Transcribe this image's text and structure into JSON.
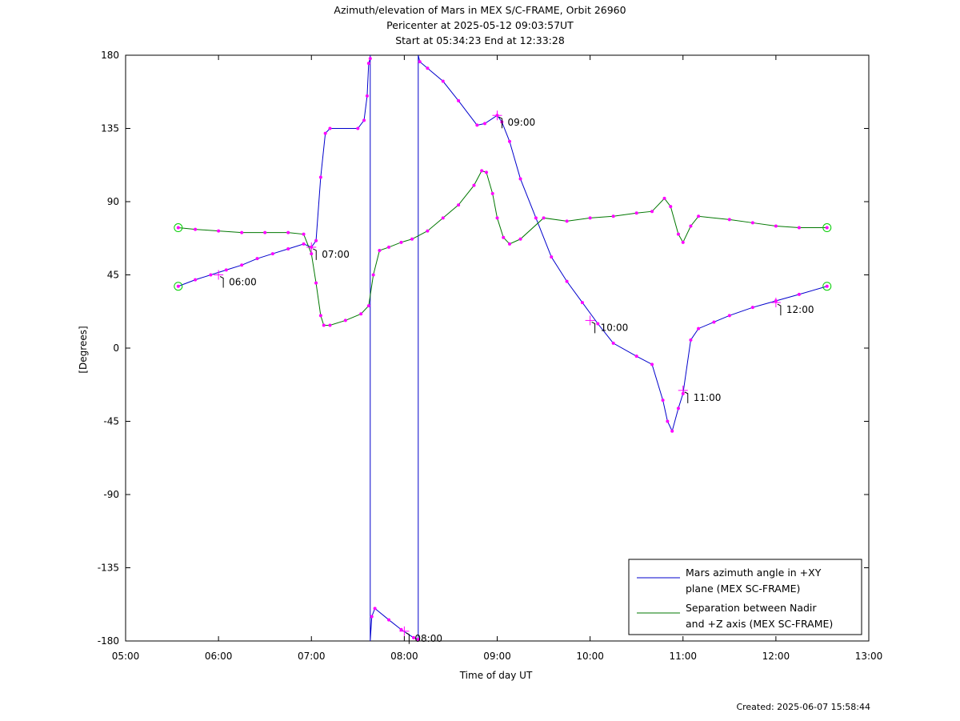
{
  "chart_data": {
    "type": "line",
    "title": "Azimuth/elevation of Mars in MEX S/C-FRAME,  Orbit 26960",
    "subtitle": "Pericenter at 2025-05-12 09:03:57UT",
    "subtitle2": "Start at 05:34:23 End at 12:33:28",
    "xlabel": "Time of day UT",
    "ylabel": "[Degrees]",
    "xlim": [
      "05:00",
      "13:00"
    ],
    "ylim": [
      -180,
      180
    ],
    "x_ticks": [
      "05:00",
      "06:00",
      "07:00",
      "08:00",
      "09:00",
      "10:00",
      "11:00",
      "12:00",
      "13:00"
    ],
    "y_ticks": [
      "180",
      "135",
      "90",
      "45",
      "0",
      "-45",
      "-90",
      "-135",
      "-180"
    ],
    "grid": false,
    "legend_position": "bottom-right",
    "footer": "Created: 2025-06-07 15:58:44",
    "series": [
      {
        "name": "Mars azimuth angle in +XY plane (MEX SC-FRAME)",
        "color": "#0000cc",
        "points": [
          [
            "05:34",
            38
          ],
          [
            "05:45",
            42
          ],
          [
            "05:55",
            45
          ],
          [
            "06:05",
            48
          ],
          [
            "06:15",
            51
          ],
          [
            "06:25",
            55
          ],
          [
            "06:35",
            58
          ],
          [
            "06:45",
            61
          ],
          [
            "06:55",
            64
          ],
          [
            "07:00",
            62
          ],
          [
            "07:03",
            66
          ],
          [
            "07:06",
            105
          ],
          [
            "07:09",
            132
          ],
          [
            "07:12",
            135
          ],
          [
            "07:30",
            135
          ],
          [
            "07:34",
            140
          ],
          [
            "07:36",
            155
          ],
          [
            "07:37",
            175
          ],
          [
            "07:38",
            178
          ],
          [
            "07:39",
            -165
          ],
          [
            "07:41",
            -160
          ],
          [
            "07:50",
            -167
          ],
          [
            "07:58",
            -173
          ],
          [
            "08:06",
            -178
          ],
          [
            "08:09",
            -179
          ],
          [
            "08:10",
            176
          ],
          [
            "08:15",
            172
          ],
          [
            "08:25",
            164
          ],
          [
            "08:35",
            152
          ],
          [
            "08:47",
            137
          ],
          [
            "08:52",
            138
          ],
          [
            "09:00",
            143
          ],
          [
            "09:03",
            139
          ],
          [
            "09:08",
            127
          ],
          [
            "09:15",
            104
          ],
          [
            "09:25",
            80
          ],
          [
            "09:35",
            56
          ],
          [
            "09:45",
            41
          ],
          [
            "09:55",
            28
          ],
          [
            "10:05",
            15
          ],
          [
            "10:15",
            3
          ],
          [
            "10:30",
            -5
          ],
          [
            "10:40",
            -10
          ],
          [
            "10:47",
            -32
          ],
          [
            "10:50",
            -45
          ],
          [
            "10:53",
            -51
          ],
          [
            "10:57",
            -37
          ],
          [
            "11:00",
            -28
          ],
          [
            "11:05",
            5
          ],
          [
            "11:10",
            12
          ],
          [
            "11:20",
            16
          ],
          [
            "11:30",
            20
          ],
          [
            "11:45",
            25
          ],
          [
            "12:00",
            29
          ],
          [
            "12:15",
            33
          ],
          [
            "12:33",
            38
          ]
        ]
      },
      {
        "name": "Separation between Nadir and +Z axis (MEX SC-FRAME)",
        "color": "#007700",
        "points": [
          [
            "05:34",
            74
          ],
          [
            "05:45",
            73
          ],
          [
            "06:00",
            72
          ],
          [
            "06:15",
            71
          ],
          [
            "06:30",
            71
          ],
          [
            "06:45",
            71
          ],
          [
            "06:55",
            70
          ],
          [
            "07:00",
            58
          ],
          [
            "07:03",
            40
          ],
          [
            "07:06",
            20
          ],
          [
            "07:08",
            14
          ],
          [
            "07:12",
            14
          ],
          [
            "07:22",
            17
          ],
          [
            "07:32",
            21
          ],
          [
            "07:37",
            26
          ],
          [
            "07:40",
            45
          ],
          [
            "07:44",
            60
          ],
          [
            "07:50",
            62
          ],
          [
            "07:58",
            65
          ],
          [
            "08:05",
            67
          ],
          [
            "08:15",
            72
          ],
          [
            "08:25",
            80
          ],
          [
            "08:35",
            88
          ],
          [
            "08:45",
            100
          ],
          [
            "08:50",
            109
          ],
          [
            "08:53",
            108
          ],
          [
            "08:57",
            95
          ],
          [
            "09:00",
            80
          ],
          [
            "09:04",
            68
          ],
          [
            "09:08",
            64
          ],
          [
            "09:15",
            67
          ],
          [
            "09:30",
            80
          ],
          [
            "09:45",
            78
          ],
          [
            "10:00",
            80
          ],
          [
            "10:15",
            81
          ],
          [
            "10:30",
            83
          ],
          [
            "10:40",
            84
          ],
          [
            "10:48",
            92
          ],
          [
            "10:52",
            87
          ],
          [
            "10:57",
            70
          ],
          [
            "11:00",
            65
          ],
          [
            "11:05",
            75
          ],
          [
            "11:10",
            81
          ],
          [
            "11:30",
            79
          ],
          [
            "11:45",
            77
          ],
          [
            "12:00",
            75
          ],
          [
            "12:15",
            74
          ],
          [
            "12:33",
            74
          ]
        ]
      }
    ],
    "time_annotations": [
      {
        "label": "06:00",
        "time": "06:00",
        "y": 45
      },
      {
        "label": "07:00",
        "time": "07:00",
        "y": 62
      },
      {
        "label": "08:00",
        "time": "08:00",
        "y": -174
      },
      {
        "label": "09:00",
        "time": "09:00",
        "y": 143
      },
      {
        "label": "10:00",
        "time": "10:00",
        "y": 17
      },
      {
        "label": "11:00",
        "time": "11:00",
        "y": -26
      },
      {
        "label": "12:00",
        "time": "12:00",
        "y": 28
      }
    ],
    "marker_color": "#ff00ff",
    "endpoint_marker_color": "#00cc00"
  }
}
